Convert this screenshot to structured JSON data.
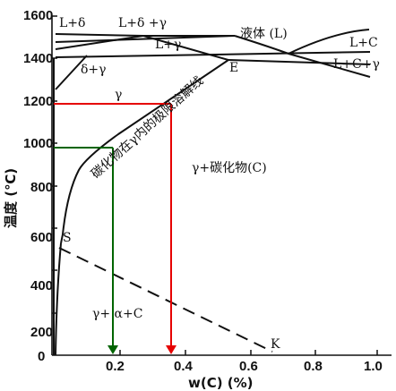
{
  "diagram": {
    "type": "phase-diagram",
    "y_axis": {
      "title": "温度 (℃)",
      "range": [
        0,
        1600
      ],
      "ticks": [
        "0",
        "200",
        "400",
        "600",
        "800",
        "1000",
        "1200",
        "1400",
        "1600"
      ]
    },
    "x_axis": {
      "title": "w(C) (%)",
      "range": [
        0,
        1.0
      ],
      "ticks": [
        "0.2",
        "0.4",
        "0.6",
        "0.8",
        "1.0"
      ]
    },
    "region_labels": {
      "l_delta": "L+δ",
      "l_delta_gamma": "L+δ +γ",
      "liquid": "液体 (L)",
      "l_gamma": "L+γ",
      "l_c": "L+C",
      "l_c_gamma": "L+C+γ",
      "delta_gamma": "δ+γ",
      "gamma": "γ",
      "gamma_carbide": "γ+碳化物(C)",
      "gamma_alpha_c": "γ+ α+C",
      "solubility_line": "碳化物在γ内的极限溶解线",
      "point_e": "E",
      "point_s": "S",
      "point_k": "K"
    },
    "guides": {
      "red": {
        "composition": 0.35,
        "temperature": 1200,
        "color": "#e60000"
      },
      "green": {
        "composition": 0.18,
        "temperature": 1000,
        "color": "#006400"
      }
    },
    "colors": {
      "lines": "#111111",
      "red_guide": "#e60000",
      "green_guide": "#006400"
    }
  }
}
